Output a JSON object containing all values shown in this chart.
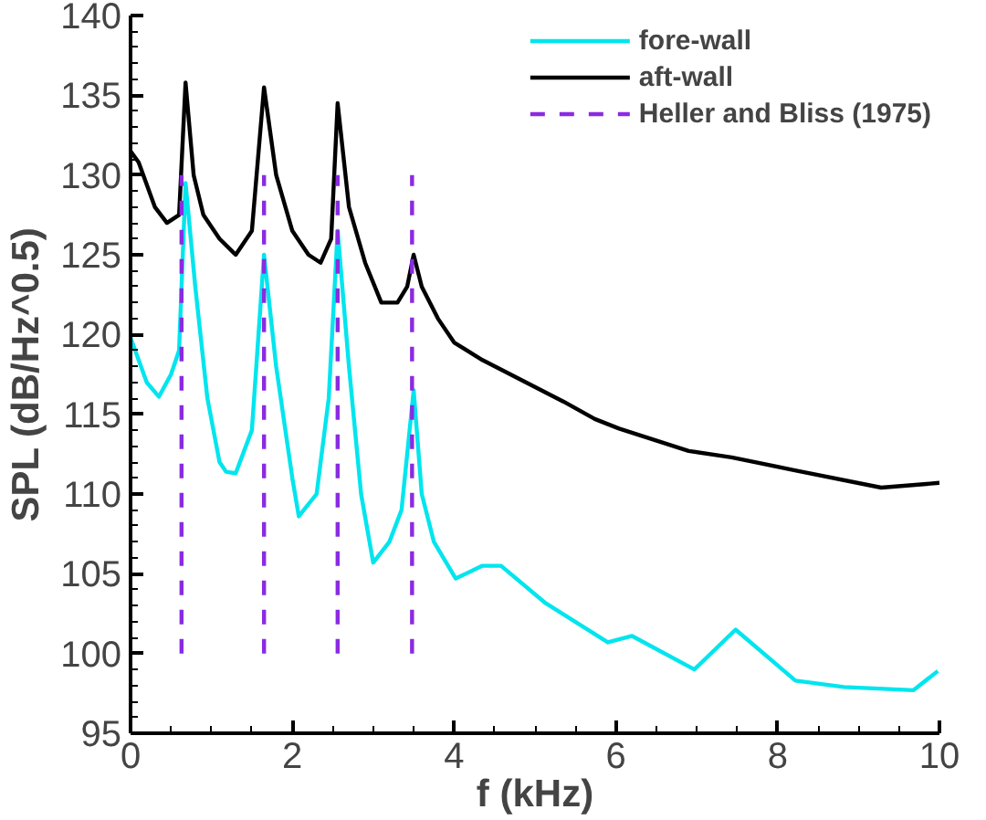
{
  "chart_data": {
    "type": "line",
    "xlabel": "f (kHz)",
    "ylabel": "SPL (dB/Hz^0.5)",
    "xlim": [
      0,
      10
    ],
    "ylim": [
      95,
      140
    ],
    "xticks": [
      0,
      2,
      4,
      6,
      8,
      10
    ],
    "yticks": [
      95,
      100,
      105,
      110,
      115,
      120,
      125,
      130,
      135,
      140
    ],
    "grid": false,
    "legend": "top right",
    "line_style": "solid",
    "marker": "none",
    "series": [
      {
        "name": "fore-wall",
        "color": "#00e5ee",
        "x": [
          0,
          0.2,
          0.35,
          0.5,
          0.6,
          0.68,
          0.8,
          0.95,
          1.1,
          1.18,
          1.3,
          1.5,
          1.65,
          1.8,
          2.0,
          2.08,
          2.3,
          2.45,
          2.56,
          2.7,
          2.85,
          3.0,
          3.2,
          3.35,
          3.5,
          3.6,
          3.75,
          4.02,
          4.35,
          4.58,
          5.12,
          5.9,
          6.2,
          6.97,
          7.48,
          8.22,
          8.82,
          9.68,
          9.98
        ],
        "values": [
          119.8,
          117,
          116.1,
          117.5,
          119,
          129.5,
          123,
          116,
          112,
          111.4,
          111.3,
          114,
          125,
          118,
          111,
          108.6,
          110,
          116,
          126.5,
          118,
          110,
          105.7,
          107,
          109,
          116.5,
          110,
          107,
          104.7,
          105.5,
          105.5,
          103.2,
          100.7,
          101.1,
          99.0,
          101.5,
          98.3,
          97.9,
          97.7,
          98.9
        ]
      },
      {
        "name": "aft-wall",
        "color": "#000000",
        "x": [
          0,
          0.1,
          0.3,
          0.45,
          0.6,
          0.68,
          0.78,
          0.9,
          1.1,
          1.3,
          1.5,
          1.65,
          1.8,
          2.0,
          2.2,
          2.35,
          2.48,
          2.56,
          2.7,
          2.9,
          3.1,
          3.3,
          3.42,
          3.5,
          3.6,
          3.8,
          4.0,
          4.35,
          5.35,
          5.74,
          6.04,
          6.9,
          7.43,
          8.2,
          9.28,
          10
        ],
        "values": [
          131.5,
          130.8,
          128,
          127,
          127.5,
          135.8,
          130,
          127.5,
          126,
          125,
          126.5,
          135.5,
          130,
          126.5,
          125,
          124.5,
          126,
          134.5,
          128,
          124.5,
          122,
          122,
          123,
          125,
          123,
          121,
          119.5,
          118.4,
          115.8,
          114.7,
          114.1,
          112.7,
          112.3,
          111.5,
          110.4,
          110.7
        ]
      },
      {
        "name": "Heller and Bliss (1975)",
        "color": "#8a2be2",
        "line_style": "dashed",
        "x": [
          0.63,
          0.63
        ],
        "values": [
          100,
          130
        ]
      },
      {
        "color": "#8a2be2",
        "line_style": "dashed",
        "x": [
          1.65,
          1.65
        ],
        "values": [
          100,
          130
        ]
      },
      {
        "color": "#8a2be2",
        "line_style": "dashed",
        "x": [
          2.56,
          2.56
        ],
        "values": [
          100,
          130
        ]
      },
      {
        "color": "#8a2be2",
        "line_style": "dashed",
        "x": [
          3.48,
          3.48
        ],
        "values": [
          100,
          130
        ]
      }
    ]
  }
}
